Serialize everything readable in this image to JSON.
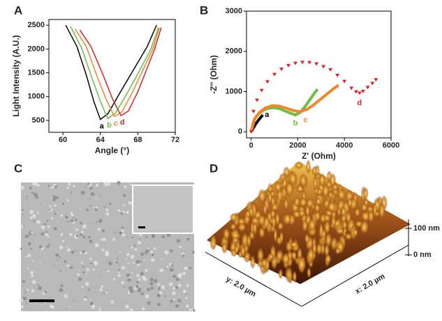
{
  "chart_data": [
    {
      "type": "line",
      "panel": "A",
      "x_label": "Angle (°)",
      "y_label": "Light Intensity (A.U.)",
      "xlim": [
        58.5,
        72
      ],
      "xticks": [
        60,
        64,
        68,
        72
      ],
      "ylim": [
        250,
        2620
      ],
      "yticks": [
        500,
        1000,
        1500,
        2000,
        2500
      ],
      "series": [
        {
          "name": "a",
          "color": "#000000",
          "x": [
            60.3,
            61.5,
            62.5,
            63.3,
            64.0,
            64.8,
            66.0,
            67.5,
            69.0,
            70.0
          ],
          "values": [
            2500,
            2050,
            1450,
            900,
            520,
            640,
            1050,
            1550,
            2050,
            2500
          ]
        },
        {
          "name": "b",
          "color": "#6cbd45",
          "x": [
            60.8,
            62.0,
            63.0,
            64.0,
            64.8,
            65.6,
            66.8,
            68.2,
            69.4,
            70.2
          ],
          "values": [
            2480,
            2020,
            1450,
            900,
            540,
            650,
            1050,
            1550,
            2000,
            2450
          ]
        },
        {
          "name": "c",
          "color": "#f0862a",
          "x": [
            61.3,
            62.5,
            63.6,
            64.6,
            65.5,
            66.3,
            67.4,
            68.6,
            69.6,
            70.3
          ],
          "values": [
            2420,
            2050,
            1450,
            950,
            580,
            680,
            1080,
            1580,
            2000,
            2450
          ]
        },
        {
          "name": "d",
          "color": "#d62728",
          "x": [
            61.8,
            63.0,
            64.3,
            65.3,
            66.2,
            67.0,
            68.0,
            69.0,
            69.8,
            70.5
          ],
          "values": [
            2400,
            2050,
            1450,
            950,
            600,
            700,
            1100,
            1600,
            2000,
            2450
          ]
        }
      ]
    },
    {
      "type": "scatter",
      "panel": "B",
      "x_label": "Z' (Ohm)",
      "y_label": "-Z'' (Ohm)",
      "xlim": [
        -200,
        6000
      ],
      "xticks": [
        0,
        2000,
        4000,
        6000
      ],
      "ylim": [
        -150,
        3000
      ],
      "yticks": [
        0,
        1000,
        2000,
        3000
      ],
      "series": [
        {
          "name": "a",
          "color": "#000000",
          "marker": "line",
          "x": [
            0,
            100,
            200,
            300,
            400,
            500
          ],
          "values": [
            0,
            100,
            200,
            280,
            350,
            420
          ]
        },
        {
          "name": "b",
          "color": "#6cbd45",
          "marker": "line",
          "x": [
            0,
            100,
            250,
            450,
            700,
            950,
            1200,
            1450,
            1700,
            1900,
            2100,
            2300,
            2500,
            2700,
            2850
          ],
          "values": [
            0,
            260,
            400,
            510,
            580,
            600,
            580,
            520,
            460,
            420,
            480,
            620,
            780,
            950,
            1060
          ]
        },
        {
          "name": "c",
          "color": "#f0862a",
          "marker": "line",
          "x": [
            0,
            150,
            350,
            600,
            900,
            1200,
            1500,
            1800,
            2100,
            2400,
            2700,
            3000,
            3300,
            3550,
            3750
          ],
          "values": [
            0,
            330,
            480,
            590,
            650,
            640,
            590,
            530,
            500,
            560,
            680,
            820,
            960,
            1080,
            1160
          ]
        },
        {
          "name": "d",
          "color": "#d62728",
          "marker": "triangle-down",
          "x": [
            0,
            100,
            250,
            450,
            700,
            1000,
            1300,
            1600,
            1900,
            2200,
            2500,
            2800,
            3100,
            3400,
            3700,
            4000,
            4300,
            4500,
            4650,
            4800,
            5000,
            5200,
            5350
          ],
          "values": [
            0,
            503,
            782,
            1025,
            1239,
            1423,
            1553,
            1643,
            1699,
            1723,
            1718,
            1684,
            1618,
            1540,
            1400,
            1250,
            1080,
            990,
            960,
            1000,
            1100,
            1200,
            1290
          ]
        }
      ]
    }
  ],
  "images": [
    {
      "panel": "C"
    },
    {
      "panel": "D",
      "z_top": "100 nm",
      "z_bottom": "0 nm",
      "x_label": "x: 2.0 µm",
      "y_label": "y: 2.0 µm"
    }
  ]
}
